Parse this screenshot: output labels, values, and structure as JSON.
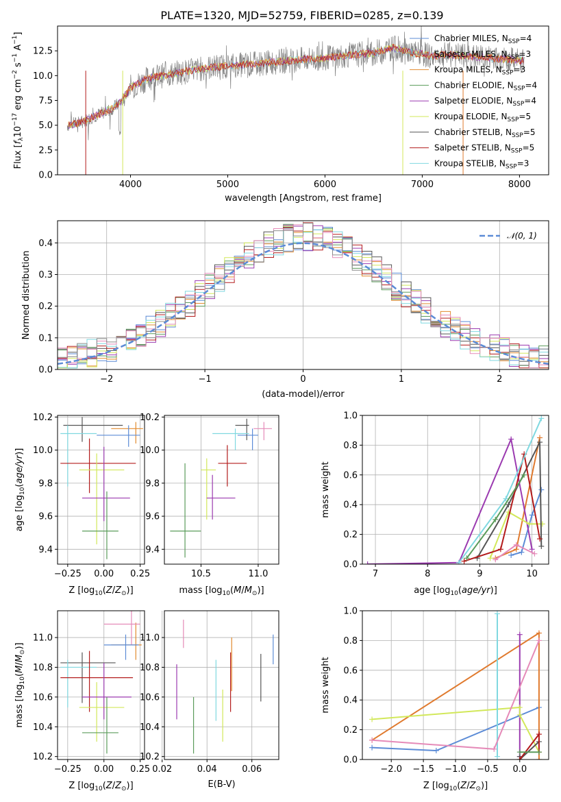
{
  "figure_title": "PLATE=1320, MJD=52759, FIBERID=0285, z=0.139",
  "colors": {
    "Chabrier MILES": "#5b8bd6",
    "Salpeter MILES": "#8c8c8c",
    "Kroupa MILES": "#e28a2e",
    "Chabrier ELODIE": "#5a9b5a",
    "Salpeter ELODIE": "#9b3ab0",
    "Kroupa ELODIE": "#d2e85a",
    "Chabrier STELIB": "#555555",
    "Salpeter STELIB": "#b31b1b",
    "Kroupa STELIB": "#7fd8e0",
    "Kroupa MILES line": "#e07a2e",
    "pink": "#e58ab8",
    "normal": "#5b8bd6",
    "data": "#808080"
  },
  "chart_data": [
    {
      "id": "spectrum",
      "type": "line",
      "xlabel": "wavelength [Angstrom, rest frame]",
      "ylabel": "Flux [f_λ 10^-17 erg cm^-2 s^-1 A^-1]",
      "xlim": [
        3250,
        8300
      ],
      "ylim": [
        0,
        15
      ],
      "xticks": [
        4000,
        5000,
        6000,
        7000,
        8000
      ],
      "yticks": [
        0.0,
        2.5,
        5.0,
        7.5,
        10.0,
        12.5
      ],
      "grid": false,
      "legend_position": "right",
      "legend": [
        {
          "name": "Chabrier MILES",
          "nssp": 4
        },
        {
          "name": "Salpeter MILES",
          "nssp": 3
        },
        {
          "name": "Kroupa MILES",
          "nssp": 3
        },
        {
          "name": "Chabrier ELODIE",
          "nssp": 4
        },
        {
          "name": "Salpeter ELODIE",
          "nssp": 4
        },
        {
          "name": "Kroupa ELODIE",
          "nssp": 5
        },
        {
          "name": "Chabrier STELIB",
          "nssp": 5
        },
        {
          "name": "Salpeter STELIB",
          "nssp": 5
        },
        {
          "name": "Kroupa STELIB",
          "nssp": 3
        }
      ],
      "continuum": {
        "x": [
          3350,
          3500,
          3600,
          3700,
          3800,
          3900,
          4000,
          4200,
          4500,
          4800,
          5000,
          5300,
          5600,
          5900,
          6200,
          6500,
          6700,
          6900,
          7100,
          7300,
          7500,
          7700,
          7900,
          8050
        ],
        "y": [
          5.0,
          5.3,
          5.8,
          6.2,
          6.6,
          7.3,
          8.8,
          9.8,
          10.3,
          10.8,
          11.0,
          11.2,
          11.5,
          11.7,
          12.0,
          12.3,
          12.8,
          12.3,
          12.0,
          12.1,
          11.9,
          11.8,
          11.6,
          11.5
        ]
      }
    },
    {
      "id": "residuals",
      "type": "histogram",
      "xlabel": "(data-model)/error",
      "ylabel": "Normed distribution",
      "xlim": [
        -2.5,
        2.5
      ],
      "ylim": [
        0,
        0.47
      ],
      "xticks": [
        -2,
        -1,
        0,
        1,
        2
      ],
      "yticks": [
        0.0,
        0.1,
        0.2,
        0.3,
        0.4
      ],
      "grid": true,
      "legend_position": "top-right",
      "normal_label": "N(0,1)"
    },
    {
      "id": "age-vs-Z",
      "type": "errorbar",
      "xlabel": "Z [log10(Z/Z⊙)]",
      "ylabel": "age  [log10(age/yr)]",
      "xlim": [
        -0.32,
        0.28
      ],
      "ylim": [
        9.31,
        10.21
      ],
      "xticks": [
        -0.25,
        0.0,
        0.25
      ],
      "yticks": [
        9.4,
        9.6,
        9.8,
        10.0,
        10.2
      ],
      "grid": true
    },
    {
      "id": "age-vs-mass",
      "type": "errorbar",
      "xlabel": "mass [log10(M/M⊙)]",
      "ylabel": "",
      "xlim": [
        10.18,
        11.18
      ],
      "ylim": [
        9.31,
        10.21
      ],
      "xticks": [
        10.5,
        11.0
      ],
      "yticks": [
        9.4,
        9.6,
        9.8,
        10.0,
        10.2
      ],
      "grid": true
    },
    {
      "id": "massweight-vs-age",
      "type": "line",
      "xlabel": "age  [log10(age/yr)]",
      "ylabel": "mass weight",
      "xlim": [
        6.75,
        10.32
      ],
      "ylim": [
        0,
        1.0
      ],
      "xticks": [
        7,
        8,
        9,
        10
      ],
      "yticks": [
        0.0,
        0.2,
        0.4,
        0.6,
        0.8,
        1.0
      ],
      "grid": true
    },
    {
      "id": "mass-vs-Z",
      "type": "errorbar",
      "xlabel": "Z [log10(Z/Z⊙)]",
      "ylabel": "mass [log10(M/M⊙)]",
      "xlim": [
        -0.32,
        0.28
      ],
      "ylim": [
        10.18,
        11.18
      ],
      "xticks": [
        -0.25,
        0.0,
        0.25
      ],
      "yticks": [
        10.2,
        10.4,
        10.6,
        10.8,
        11.0
      ],
      "grid": true
    },
    {
      "id": "mass-vs-EBV",
      "type": "errorbar",
      "xlabel": "E(B-V)",
      "ylabel": "",
      "xlim": [
        0.021,
        0.072
      ],
      "ylim": [
        10.18,
        11.18
      ],
      "xticks": [
        0.02,
        0.04,
        0.06
      ],
      "yticks": [
        10.2,
        10.4,
        10.6,
        10.8,
        11.0
      ],
      "grid": true
    },
    {
      "id": "massweight-vs-Z",
      "type": "line",
      "xlabel": "Z [log10(Z/Z⊙)]",
      "ylabel": "mass weight",
      "xlim": [
        -2.45,
        0.45
      ],
      "ylim": [
        0,
        1.0
      ],
      "xticks": [
        -2.0,
        -1.5,
        -1.0,
        -0.5,
        0.0
      ],
      "yticks": [
        0.0,
        0.2,
        0.4,
        0.6,
        0.8,
        1.0
      ],
      "grid": true
    }
  ]
}
